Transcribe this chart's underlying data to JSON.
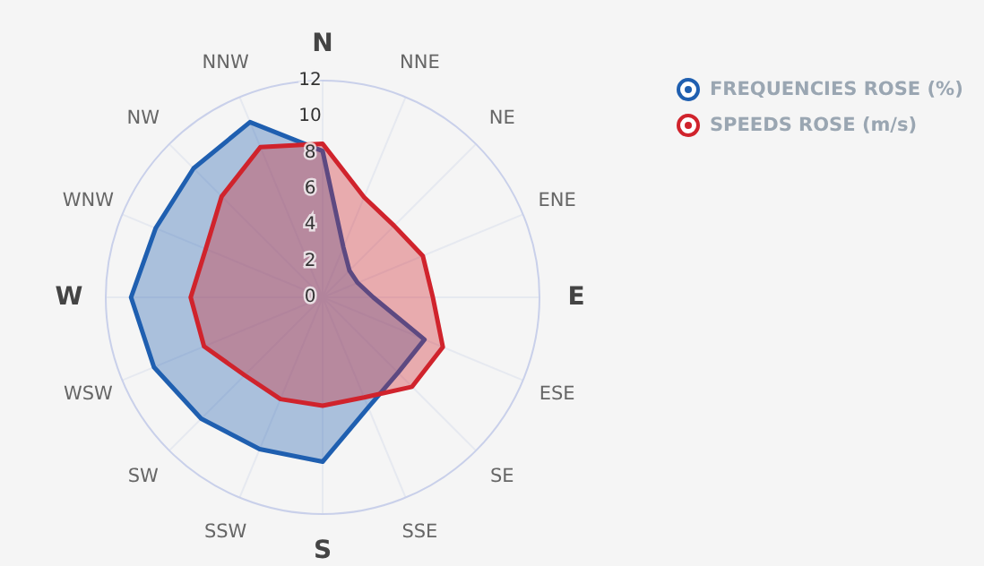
{
  "chart_data": {
    "type": "radar",
    "categories": [
      "N",
      "NNE",
      "NE",
      "ENE",
      "E",
      "ESE",
      "SE",
      "SSE",
      "S",
      "SSW",
      "SW",
      "WSW",
      "W",
      "WNW",
      "NW",
      "NNW"
    ],
    "series": [
      {
        "name": "FREQUENCIES ROSE (%)",
        "color": "#1f5fb0",
        "values": [
          8.1,
          3.0,
          2.1,
          2.1,
          2.8,
          6.1,
          5.9,
          6.6,
          9.1,
          9.1,
          9.5,
          10.1,
          10.6,
          10.0,
          10.1,
          10.5
        ]
      },
      {
        "name": "SPEEDS ROSE (m/s)",
        "color": "#d0232c",
        "values": [
          8.5,
          6.0,
          5.6,
          6.0,
          6.1,
          7.2,
          7.0,
          6.0,
          6.0,
          6.1,
          6.1,
          7.1,
          7.3,
          7.0,
          7.9,
          9.0
        ]
      }
    ],
    "ylim": [
      0,
      12
    ],
    "yticks": [
      0,
      2,
      4,
      6,
      8,
      10,
      12
    ],
    "grid": true,
    "legend": "top right"
  }
}
